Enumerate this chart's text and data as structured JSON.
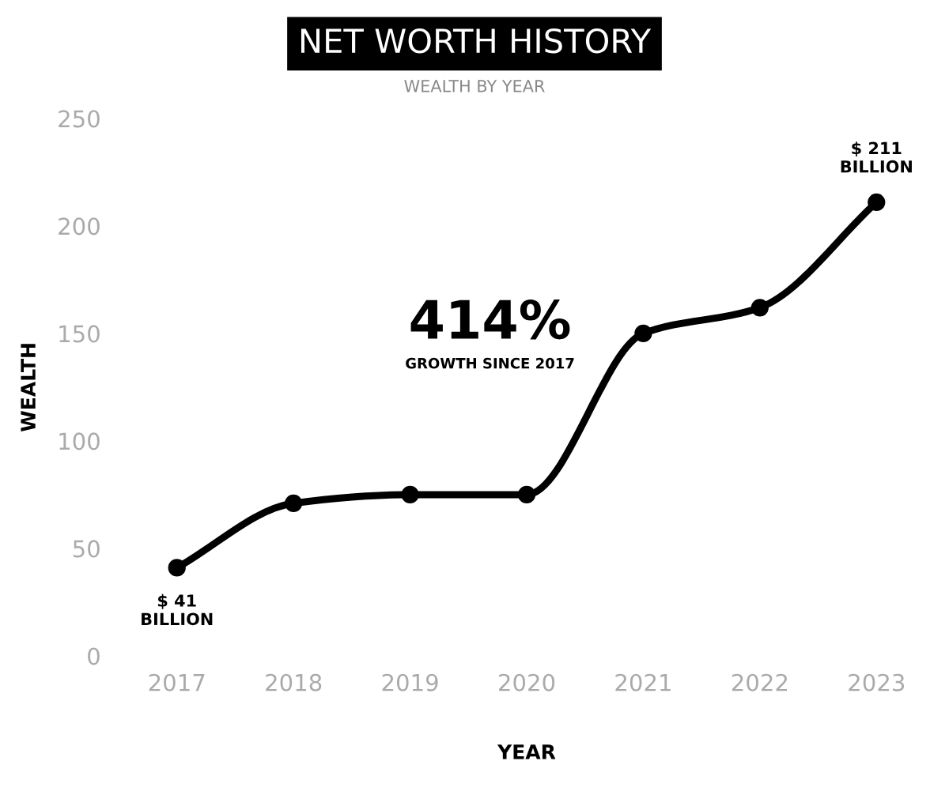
{
  "chart_data": {
    "type": "line",
    "title": "NET WORTH HISTORY",
    "subtitle": "WEALTH BY YEAR",
    "xlabel": "YEAR",
    "ylabel": "WEALTH",
    "categories": [
      "2017",
      "2018",
      "2019",
      "2020",
      "2021",
      "2022",
      "2023"
    ],
    "series": [
      {
        "color": "#000000",
        "values": [
          41,
          71,
          75,
          75,
          150,
          162,
          211
        ]
      }
    ],
    "ylim": [
      0,
      250
    ],
    "yticks": [
      0,
      50,
      100,
      150,
      200,
      250
    ],
    "grid": false,
    "legend": false,
    "marker": "circle",
    "line_style": "solid",
    "annotations": [
      {
        "text": "$ 41\nBILLION",
        "x": "2017",
        "y": 41
      },
      {
        "text": "$ 211\nBILLION",
        "x": "2023",
        "y": 211
      },
      "414%",
      "GROWTH SINCE 2017"
    ]
  }
}
